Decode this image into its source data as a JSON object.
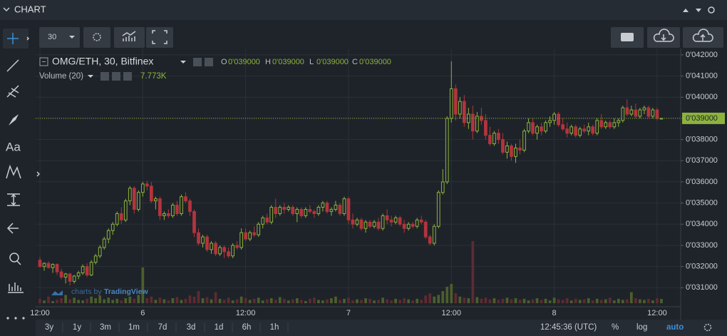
{
  "chart_data": {
    "type": "candlestick",
    "title": "OMG/ETH, 30, Bitfinex",
    "ohlc": {
      "names": [
        "O",
        "H",
        "L",
        "C"
      ],
      "value_labels": [
        "0'039000",
        "0'039000",
        "0'039000",
        "0'039000"
      ]
    },
    "up_color": "#8db33d",
    "down_color": "#b3343d",
    "volume_up_color": "#4d5e2c",
    "volume_down_color": "#5e2b32",
    "grid": true,
    "ylim": [
      0.0301,
      0.0423
    ],
    "yticks": [
      {
        "value": 0.031,
        "label": "0'031000"
      },
      {
        "value": 0.032,
        "label": "0'032000"
      },
      {
        "value": 0.033,
        "label": "0'033000"
      },
      {
        "value": 0.034,
        "label": "0'034000"
      },
      {
        "value": 0.035,
        "label": "0'035000"
      },
      {
        "value": 0.036,
        "label": "0'036000"
      },
      {
        "value": 0.037,
        "label": "0'037000"
      },
      {
        "value": 0.038,
        "label": "0'038000"
      },
      {
        "value": 0.039,
        "label": "0'039000"
      },
      {
        "value": 0.04,
        "label": "0'040000"
      },
      {
        "value": 0.041,
        "label": "0'041000"
      },
      {
        "value": 0.042,
        "label": "0'042000"
      }
    ],
    "xlim": [
      -1,
      149.5
    ],
    "xticks": [
      {
        "value": 0,
        "label": "12:00"
      },
      {
        "value": 24,
        "label": "6"
      },
      {
        "value": 48,
        "label": "12:00"
      },
      {
        "value": 72,
        "label": "7"
      },
      {
        "value": 96,
        "label": "12:00"
      },
      {
        "value": 120,
        "label": "8"
      },
      {
        "value": 144,
        "label": "12:00"
      }
    ],
    "candles": [
      [
        0.0323,
        0.03245,
        0.03195,
        0.032
      ],
      [
        0.032,
        0.0322,
        0.0318,
        0.03215
      ],
      [
        0.03215,
        0.03225,
        0.0319,
        0.03195
      ],
      [
        0.03195,
        0.03215,
        0.0317,
        0.0321
      ],
      [
        0.0321,
        0.03215,
        0.0316,
        0.03175
      ],
      [
        0.03175,
        0.0319,
        0.0314,
        0.0315
      ],
      [
        0.0315,
        0.0317,
        0.0312,
        0.03165
      ],
      [
        0.03165,
        0.0317,
        0.0311,
        0.0313
      ],
      [
        0.0313,
        0.0316,
        0.0312,
        0.03155
      ],
      [
        0.03155,
        0.0318,
        0.0314,
        0.0317
      ],
      [
        0.0317,
        0.0321,
        0.0316,
        0.032
      ],
      [
        0.032,
        0.03215,
        0.0315,
        0.0316
      ],
      [
        0.0316,
        0.0323,
        0.03155,
        0.0322
      ],
      [
        0.0322,
        0.0326,
        0.0321,
        0.0325
      ],
      [
        0.0325,
        0.033,
        0.0324,
        0.0329
      ],
      [
        0.0329,
        0.0334,
        0.0328,
        0.0333
      ],
      [
        0.0333,
        0.0338,
        0.0331,
        0.0337
      ],
      [
        0.0337,
        0.0341,
        0.0335,
        0.034
      ],
      [
        0.034,
        0.0346,
        0.0339,
        0.0345
      ],
      [
        0.0345,
        0.0348,
        0.034,
        0.0342
      ],
      [
        0.0342,
        0.0352,
        0.0341,
        0.0351
      ],
      [
        0.0351,
        0.0358,
        0.0349,
        0.0357
      ],
      [
        0.0357,
        0.0358,
        0.0345,
        0.0347
      ],
      [
        0.0347,
        0.0356,
        0.0346,
        0.0355
      ],
      [
        0.0355,
        0.036,
        0.0353,
        0.0359
      ],
      [
        0.0359,
        0.03605,
        0.0356,
        0.0358
      ],
      [
        0.0358,
        0.036,
        0.035,
        0.0351
      ],
      [
        0.0351,
        0.0353,
        0.0347,
        0.0352
      ],
      [
        0.0352,
        0.0353,
        0.0342,
        0.0344
      ],
      [
        0.0344,
        0.0346,
        0.0342,
        0.0345
      ],
      [
        0.0345,
        0.0347,
        0.0343,
        0.0344
      ],
      [
        0.0344,
        0.035,
        0.0343,
        0.0349
      ],
      [
        0.0349,
        0.0351,
        0.0344,
        0.0345
      ],
      [
        0.0345,
        0.0354,
        0.0344,
        0.0353
      ],
      [
        0.0353,
        0.0355,
        0.035,
        0.0351
      ],
      [
        0.0351,
        0.0352,
        0.0344,
        0.0346
      ],
      [
        0.0346,
        0.0347,
        0.0334,
        0.0336
      ],
      [
        0.0336,
        0.0338,
        0.033,
        0.0331
      ],
      [
        0.0331,
        0.0335,
        0.0329,
        0.0334
      ],
      [
        0.0334,
        0.0335,
        0.0327,
        0.0328
      ],
      [
        0.0328,
        0.0332,
        0.0326,
        0.0331
      ],
      [
        0.0331,
        0.0332,
        0.0325,
        0.0326
      ],
      [
        0.0326,
        0.033,
        0.0325,
        0.0329
      ],
      [
        0.0329,
        0.033,
        0.0324,
        0.0327
      ],
      [
        0.0327,
        0.0329,
        0.0324,
        0.0325
      ],
      [
        0.0325,
        0.0331,
        0.0324,
        0.033
      ],
      [
        0.033,
        0.0332,
        0.0328,
        0.0329
      ],
      [
        0.0329,
        0.0338,
        0.0328,
        0.0336
      ],
      [
        0.0336,
        0.0338,
        0.0332,
        0.0333
      ],
      [
        0.0333,
        0.0337,
        0.0332,
        0.0336
      ],
      [
        0.0336,
        0.0339,
        0.0334,
        0.0335
      ],
      [
        0.0335,
        0.0341,
        0.0334,
        0.034
      ],
      [
        0.034,
        0.0344,
        0.0338,
        0.0343
      ],
      [
        0.0343,
        0.0345,
        0.034,
        0.0341
      ],
      [
        0.0341,
        0.0349,
        0.034,
        0.0348
      ],
      [
        0.0348,
        0.0352,
        0.0343,
        0.0345
      ],
      [
        0.0345,
        0.0349,
        0.0344,
        0.0348
      ],
      [
        0.0348,
        0.035,
        0.0345,
        0.0347
      ],
      [
        0.0347,
        0.0349,
        0.0346,
        0.0348
      ],
      [
        0.0348,
        0.0349,
        0.0344,
        0.0345
      ],
      [
        0.0345,
        0.0348,
        0.0341,
        0.0347
      ],
      [
        0.0347,
        0.0348,
        0.0343,
        0.0344
      ],
      [
        0.0344,
        0.0348,
        0.0343,
        0.0347
      ],
      [
        0.0347,
        0.0349,
        0.0345,
        0.0346
      ],
      [
        0.0346,
        0.0347,
        0.0343,
        0.0345
      ],
      [
        0.0345,
        0.0349,
        0.0344,
        0.0348
      ],
      [
        0.0348,
        0.0351,
        0.0346,
        0.035
      ],
      [
        0.035,
        0.0351,
        0.0345,
        0.0346
      ],
      [
        0.0346,
        0.0348,
        0.0344,
        0.0347
      ],
      [
        0.0347,
        0.0351,
        0.0346,
        0.0349
      ],
      [
        0.0349,
        0.035,
        0.0344,
        0.0345
      ],
      [
        0.0345,
        0.0353,
        0.0344,
        0.0352
      ],
      [
        0.0352,
        0.0353,
        0.034,
        0.0342
      ],
      [
        0.0342,
        0.0345,
        0.0338,
        0.034
      ],
      [
        0.034,
        0.0343,
        0.0339,
        0.0342
      ],
      [
        0.0342,
        0.0343,
        0.0337,
        0.0338
      ],
      [
        0.0338,
        0.0342,
        0.0336,
        0.0341
      ],
      [
        0.0341,
        0.0342,
        0.0338,
        0.0339
      ],
      [
        0.0339,
        0.0342,
        0.0338,
        0.0341
      ],
      [
        0.0341,
        0.0343,
        0.0337,
        0.0338
      ],
      [
        0.0338,
        0.0345,
        0.0337,
        0.0344
      ],
      [
        0.0344,
        0.0347,
        0.034,
        0.0342
      ],
      [
        0.0342,
        0.0344,
        0.0339,
        0.0341
      ],
      [
        0.0341,
        0.0344,
        0.034,
        0.0343
      ],
      [
        0.0343,
        0.0344,
        0.0339,
        0.034
      ],
      [
        0.034,
        0.0342,
        0.0336,
        0.0338
      ],
      [
        0.0338,
        0.0341,
        0.0337,
        0.034
      ],
      [
        0.034,
        0.0341,
        0.0338,
        0.0339
      ],
      [
        0.0339,
        0.0343,
        0.0338,
        0.0342
      ],
      [
        0.0342,
        0.0344,
        0.034,
        0.0341
      ],
      [
        0.0341,
        0.0342,
        0.0333,
        0.0334
      ],
      [
        0.0334,
        0.0335,
        0.033,
        0.0331
      ],
      [
        0.0331,
        0.034,
        0.033,
        0.0339
      ],
      [
        0.0339,
        0.0356,
        0.0338,
        0.0355
      ],
      [
        0.0355,
        0.0366,
        0.0354,
        0.036
      ],
      [
        0.036,
        0.0391,
        0.0359,
        0.039
      ],
      [
        0.039,
        0.0417,
        0.0388,
        0.0404
      ],
      [
        0.0404,
        0.0406,
        0.0389,
        0.0392
      ],
      [
        0.0392,
        0.04,
        0.039,
        0.0398
      ],
      [
        0.0398,
        0.0401,
        0.0386,
        0.0388
      ],
      [
        0.0388,
        0.0395,
        0.0385,
        0.0392
      ],
      [
        0.0392,
        0.0396,
        0.038,
        0.0384
      ],
      [
        0.0384,
        0.0393,
        0.0383,
        0.0391
      ],
      [
        0.0391,
        0.0395,
        0.0387,
        0.0389
      ],
      [
        0.0389,
        0.0392,
        0.038,
        0.0382
      ],
      [
        0.0382,
        0.0386,
        0.0377,
        0.0378
      ],
      [
        0.0378,
        0.0384,
        0.0377,
        0.0383
      ],
      [
        0.0383,
        0.0385,
        0.0378,
        0.038
      ],
      [
        0.038,
        0.0383,
        0.0373,
        0.0374
      ],
      [
        0.0374,
        0.0379,
        0.0371,
        0.0377
      ],
      [
        0.0377,
        0.0378,
        0.037,
        0.0372
      ],
      [
        0.0372,
        0.0378,
        0.0369,
        0.0376
      ],
      [
        0.0376,
        0.038,
        0.0373,
        0.0375
      ],
      [
        0.0375,
        0.0385,
        0.0374,
        0.0384
      ],
      [
        0.0384,
        0.039,
        0.0383,
        0.0388
      ],
      [
        0.0388,
        0.039,
        0.0382,
        0.0383
      ],
      [
        0.0383,
        0.0387,
        0.038,
        0.0386
      ],
      [
        0.0386,
        0.0388,
        0.0382,
        0.0384
      ],
      [
        0.0384,
        0.0389,
        0.0383,
        0.0388
      ],
      [
        0.0388,
        0.0391,
        0.0386,
        0.0389
      ],
      [
        0.0389,
        0.0393,
        0.0387,
        0.0392
      ],
      [
        0.0392,
        0.0393,
        0.0386,
        0.0387
      ],
      [
        0.0387,
        0.039,
        0.0384,
        0.0385
      ],
      [
        0.0385,
        0.0388,
        0.0381,
        0.0383
      ],
      [
        0.0383,
        0.0387,
        0.0382,
        0.0386
      ],
      [
        0.0386,
        0.0387,
        0.0381,
        0.0382
      ],
      [
        0.0382,
        0.0386,
        0.0381,
        0.0385
      ],
      [
        0.0385,
        0.0387,
        0.0383,
        0.0384
      ],
      [
        0.0384,
        0.0388,
        0.0382,
        0.0386
      ],
      [
        0.0386,
        0.0387,
        0.0382,
        0.0383
      ],
      [
        0.0383,
        0.039,
        0.0382,
        0.0389
      ],
      [
        0.0389,
        0.0392,
        0.0385,
        0.0386
      ],
      [
        0.0386,
        0.0389,
        0.0385,
        0.0388
      ],
      [
        0.0388,
        0.0389,
        0.0385,
        0.0386
      ],
      [
        0.0386,
        0.039,
        0.0385,
        0.0388
      ],
      [
        0.0388,
        0.039,
        0.0386,
        0.0389
      ],
      [
        0.0389,
        0.0396,
        0.0388,
        0.0395
      ],
      [
        0.0395,
        0.0399,
        0.0391,
        0.0392
      ],
      [
        0.0392,
        0.0396,
        0.0391,
        0.0394
      ],
      [
        0.0394,
        0.0397,
        0.039,
        0.0391
      ],
      [
        0.0391,
        0.0395,
        0.039,
        0.0394
      ],
      [
        0.0394,
        0.0396,
        0.0392,
        0.0395
      ],
      [
        0.0395,
        0.0396,
        0.039,
        0.0391
      ],
      [
        0.0391,
        0.0395,
        0.039,
        0.0394
      ],
      [
        0.0394,
        0.0395,
        0.0389,
        0.039
      ],
      [
        0.039,
        0.039,
        0.039,
        0.039
      ]
    ],
    "volume": {
      "name": "Volume (20)",
      "value_label": "7.773K",
      "values": [
        8000,
        5000,
        12000,
        4000,
        6000,
        9000,
        15000,
        7000,
        10000,
        6000,
        5000,
        8000,
        12000,
        9000,
        14000,
        7000,
        10000,
        6000,
        8000,
        5000,
        9000,
        12000,
        8000,
        15000,
        65000,
        9000,
        12000,
        6000,
        10000,
        7000,
        5000,
        9000,
        11000,
        6000,
        8000,
        14000,
        12000,
        22000,
        9000,
        11000,
        7000,
        20000,
        8000,
        6000,
        10000,
        5000,
        7000,
        12000,
        9000,
        6000,
        8000,
        10000,
        5000,
        7000,
        9000,
        6000,
        11000,
        8000,
        5000,
        7000,
        9000,
        6000,
        4000,
        8000,
        10000,
        6000,
        5000,
        7000,
        9000,
        12000,
        6000,
        8000,
        10000,
        5000,
        7000,
        6000,
        9000,
        8000,
        5000,
        6000,
        10000,
        7000,
        5000,
        8000,
        6000,
        9000,
        7000,
        5000,
        8000,
        6000,
        14000,
        18000,
        12000,
        15000,
        22000,
        30000,
        35000,
        18000,
        12000,
        10000,
        9000,
        113000,
        11000,
        8000,
        10000,
        7000,
        9000,
        6000,
        8000,
        10000,
        7000,
        9000,
        6000,
        8000,
        5000,
        7000,
        9000,
        6000,
        8000,
        5000,
        10000,
        7000,
        6000,
        9000,
        5000,
        8000,
        6000,
        7000,
        9000,
        5000,
        8000,
        6000,
        7000,
        10000,
        5000,
        8000,
        6000,
        7000,
        20000,
        9000,
        7000,
        6000,
        8000,
        5000,
        9000,
        7773
      ]
    }
  },
  "ui": {
    "panel_title": "CHART",
    "interval": "30",
    "text_tool": "Aa",
    "ranges": [
      "3y",
      "1y",
      "3m",
      "1m",
      "7d",
      "3d",
      "1d",
      "6h",
      "1h"
    ],
    "clock": "12:45:36 (UTC)",
    "percent": "%",
    "log": "log",
    "auto": "auto",
    "watermark_prefix": "charts by",
    "watermark_brand": "TradingView"
  }
}
